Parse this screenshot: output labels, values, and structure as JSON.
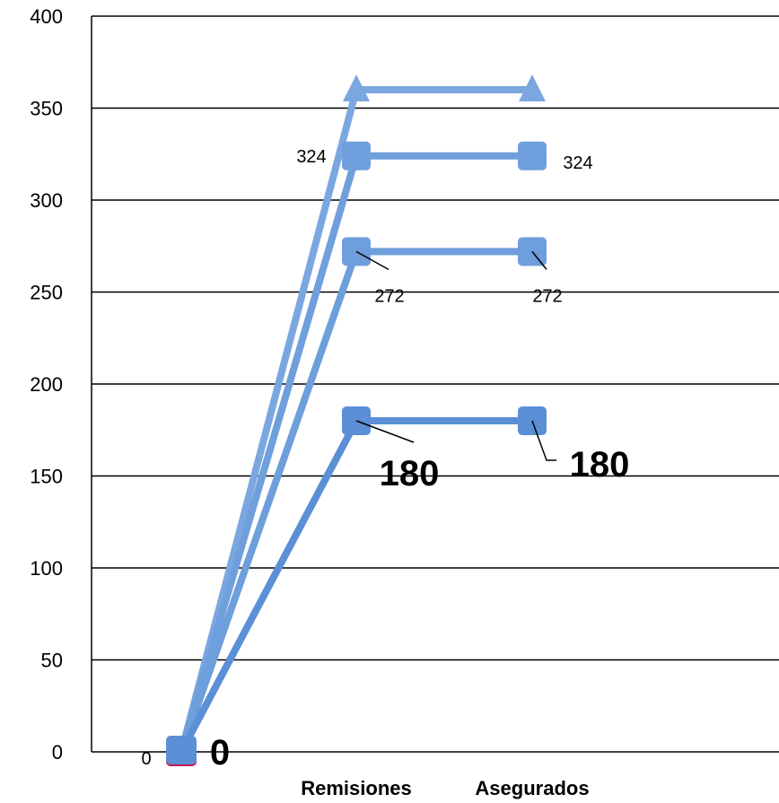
{
  "chart_data": {
    "type": "line",
    "categories": [
      "",
      "Remisiones",
      "Asegurados"
    ],
    "ylim": [
      0,
      400
    ],
    "yticks": [
      0,
      50,
      100,
      150,
      200,
      250,
      300,
      350,
      400
    ],
    "grid": true,
    "legend": "none",
    "series": [
      {
        "values": [
          0,
          360,
          360
        ],
        "marker": "triangle",
        "color": "#7aa7df",
        "labels": [
          "",
          "",
          ""
        ]
      },
      {
        "values": [
          0,
          324,
          324
        ],
        "marker": "square",
        "color": "#6f9fdc",
        "labels": [
          "",
          "324",
          "324"
        ]
      },
      {
        "values": [
          0,
          272,
          272
        ],
        "marker": "square",
        "color": "#6e9edb",
        "labels": [
          "",
          "272",
          "272"
        ]
      },
      {
        "values": [
          0,
          180,
          180
        ],
        "marker": "square",
        "color": "#5b8fd6",
        "labels": [
          "",
          "180",
          "180"
        ]
      }
    ],
    "origin_labels": [
      "0",
      "0"
    ]
  }
}
